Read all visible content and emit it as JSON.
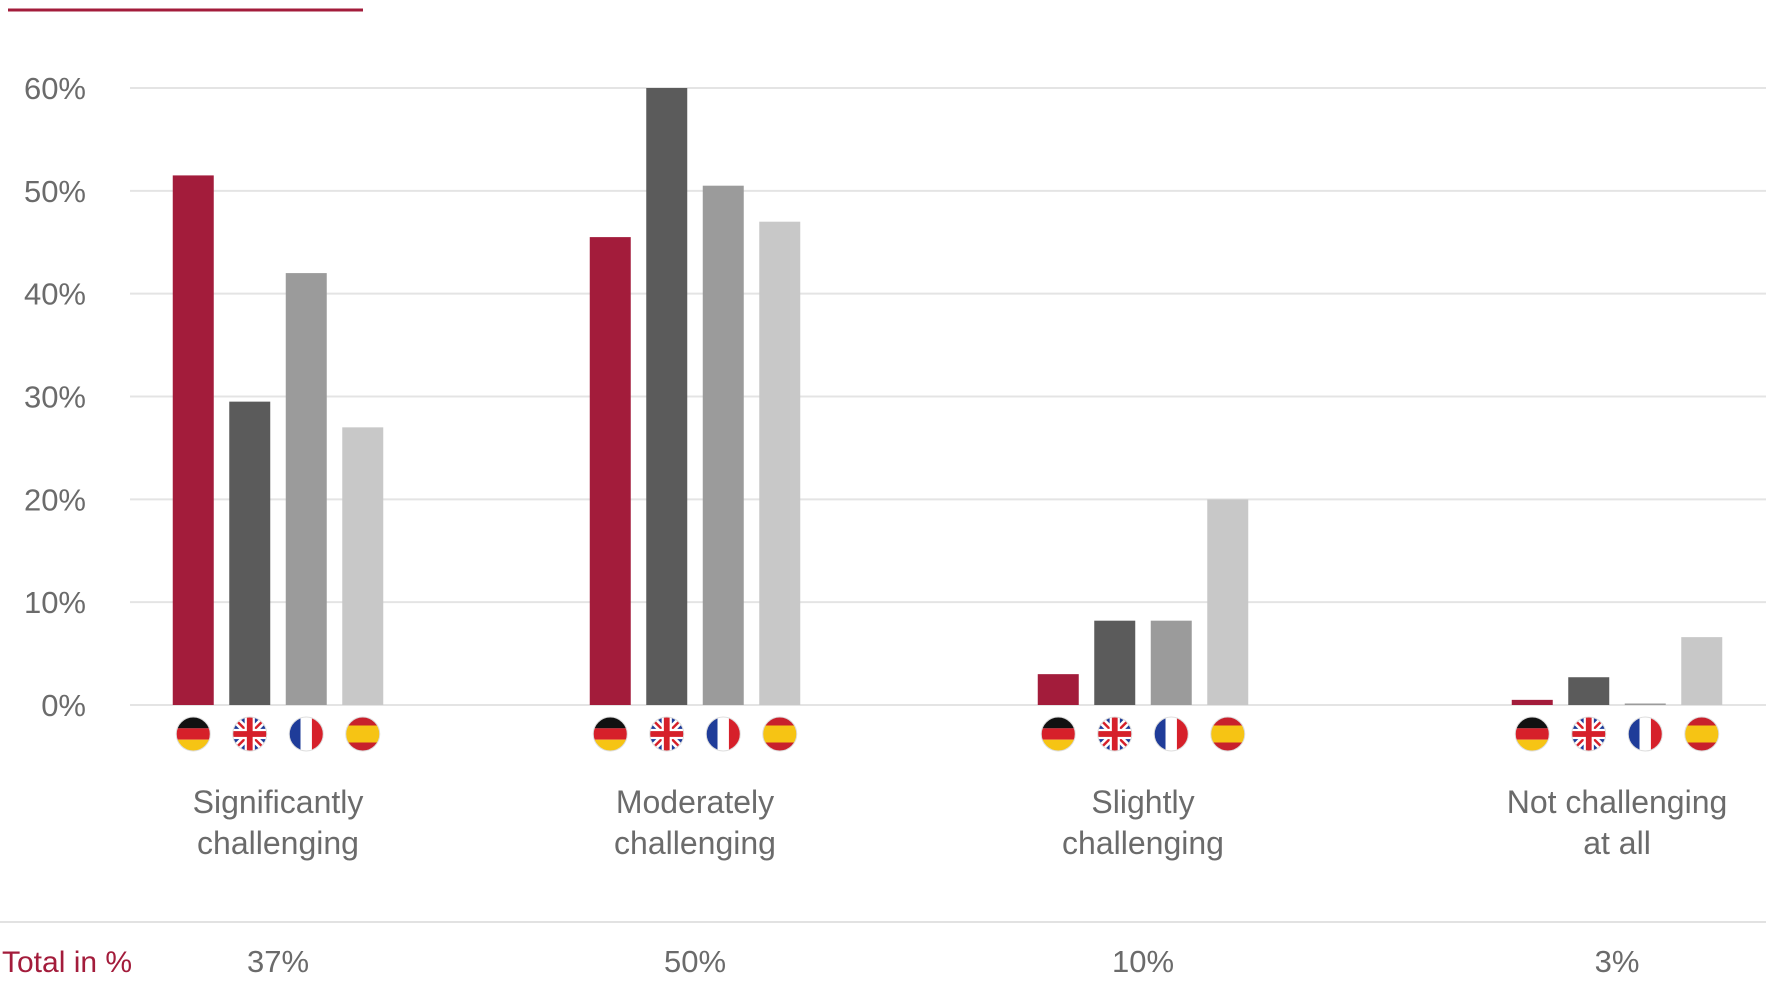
{
  "accent_line_color": "#a31c3b",
  "chart_data": {
    "type": "bar",
    "ylim": [
      0,
      60
    ],
    "yticks": [
      "0%",
      "10%",
      "20%",
      "30%",
      "40%",
      "50%",
      "60%"
    ],
    "ytick_values": [
      0,
      10,
      20,
      30,
      40,
      50,
      60
    ],
    "grid": true,
    "categories": [
      "Significantly challenging",
      "Moderately challenging",
      "Slightly challenging",
      "Not challenging at all"
    ],
    "category_lines": [
      [
        "Significantly",
        "challenging"
      ],
      [
        "Moderately",
        "challenging"
      ],
      [
        "Slightly",
        "challenging"
      ],
      [
        "Not challenging",
        "at all"
      ]
    ],
    "series": [
      {
        "flag": "germany-flag-icon",
        "color": "#a31c3b",
        "values": [
          51.5,
          45.5,
          3,
          0.5
        ]
      },
      {
        "flag": "uk-flag-icon",
        "color": "#5b5b5b",
        "values": [
          29.5,
          60,
          8.2,
          2.7
        ]
      },
      {
        "flag": "france-flag-icon",
        "color": "#9b9b9b",
        "values": [
          42,
          50.5,
          8.2,
          0
        ]
      },
      {
        "flag": "spain-flag-icon",
        "color": "#c8c8c8",
        "values": [
          27,
          47,
          20,
          6.6
        ]
      }
    ],
    "totals_label": "Total in %",
    "totals": [
      "37%",
      "50%",
      "10%",
      "3%"
    ],
    "totals_label_color": "#a31c3b"
  }
}
